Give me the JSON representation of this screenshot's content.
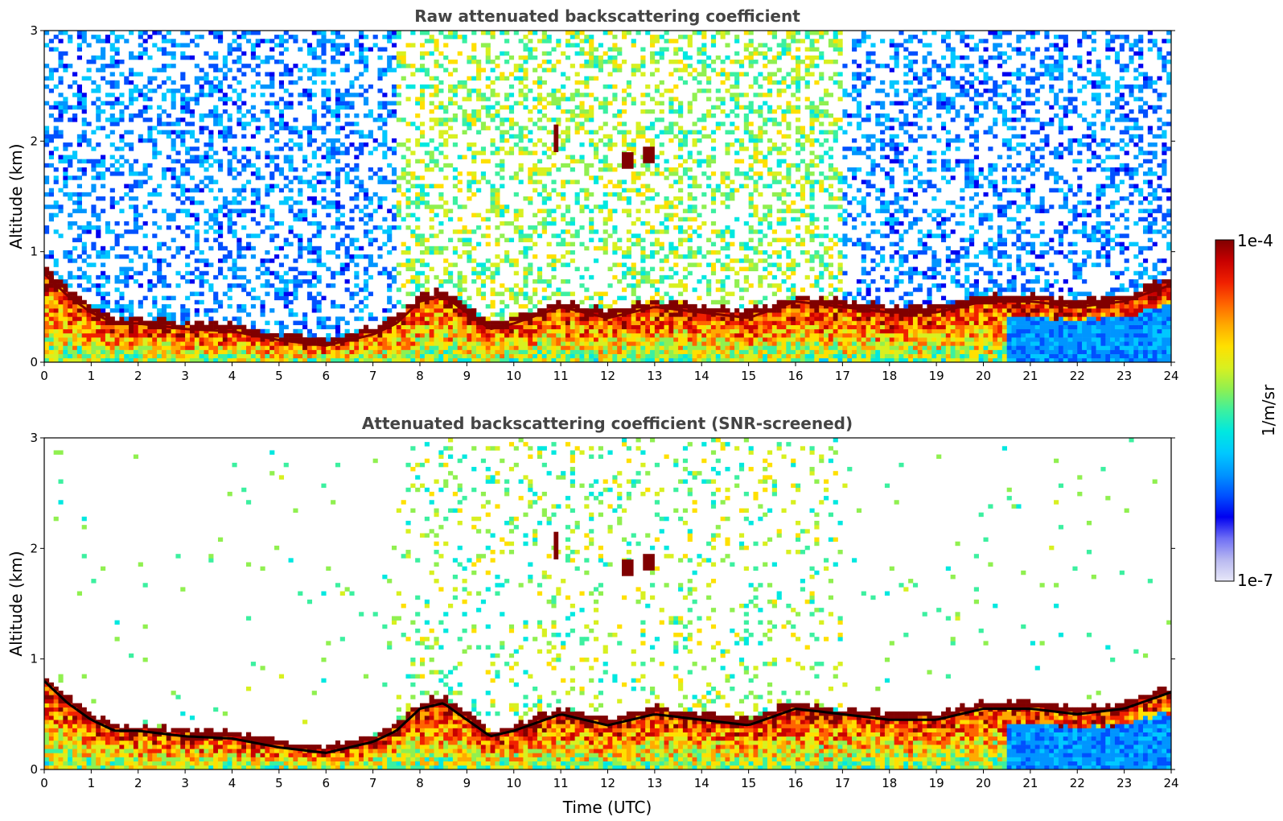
{
  "figure": {
    "colorbar": {
      "max_label": "1e-4",
      "min_label": "1e-7",
      "unit_label": "1/m/sr",
      "colormap": [
        "#e8e8f8",
        "#b8b8f0",
        "#6f6ff5",
        "#0000f0",
        "#0050ff",
        "#0095ff",
        "#00c8ff",
        "#00e8e0",
        "#3cf0a0",
        "#90f050",
        "#d8f020",
        "#ffe000",
        "#ffaa00",
        "#ff6400",
        "#f02000",
        "#c80000",
        "#800000"
      ]
    },
    "xlabel": "Time (UTC)"
  },
  "chart_data": [
    {
      "type": "heatmap",
      "title": "Raw attenuated backscattering coefficient",
      "xlabel": "",
      "ylabel": "Altitude (km)",
      "xlim": [
        0,
        24
      ],
      "ylim": [
        0,
        3
      ],
      "x_ticks": [
        "0",
        "1",
        "2",
        "3",
        "4",
        "5",
        "6",
        "7",
        "8",
        "9",
        "10",
        "11",
        "12",
        "13",
        "14",
        "15",
        "16",
        "17",
        "18",
        "19",
        "20",
        "21",
        "22",
        "23",
        "24"
      ],
      "y_ticks": [
        "0",
        "1",
        "2",
        "3"
      ],
      "value_scale": "log",
      "value_range": [
        1e-07,
        0.0001
      ],
      "value_unit": "1/m/sr",
      "boundary_layer_top_km": {
        "time_utc": [
          0,
          0.5,
          1,
          1.5,
          2,
          3,
          4,
          5,
          6,
          7,
          7.5,
          8,
          8.5,
          9,
          9.5,
          10,
          11,
          12,
          13,
          14,
          15,
          16,
          17,
          18,
          19,
          20,
          21,
          22,
          23,
          24
        ],
        "altitude_km": [
          0.8,
          0.6,
          0.45,
          0.35,
          0.35,
          0.3,
          0.28,
          0.2,
          0.15,
          0.25,
          0.35,
          0.55,
          0.6,
          0.45,
          0.3,
          0.35,
          0.5,
          0.4,
          0.5,
          0.45,
          0.4,
          0.55,
          0.5,
          0.45,
          0.45,
          0.55,
          0.55,
          0.5,
          0.55,
          0.7
        ]
      },
      "elevated_layers": [
        {
          "time_utc": [
            12.3,
            12.55
          ],
          "altitude_km": [
            1.75,
            1.9
          ]
        },
        {
          "time_utc": [
            12.75,
            13.0
          ],
          "altitude_km": [
            1.8,
            1.95
          ]
        },
        {
          "time_utc": [
            10.85,
            10.95
          ],
          "altitude_km": [
            1.9,
            2.15
          ]
        }
      ],
      "noise_level": "high"
    },
    {
      "type": "heatmap",
      "title": "Attenuated backscattering coefficient (SNR-screened)",
      "xlabel": "Time (UTC)",
      "ylabel": "Altitude (km)",
      "xlim": [
        0,
        24
      ],
      "ylim": [
        0,
        3
      ],
      "x_ticks": [
        "0",
        "1",
        "2",
        "3",
        "4",
        "5",
        "6",
        "7",
        "8",
        "9",
        "10",
        "11",
        "12",
        "13",
        "14",
        "15",
        "16",
        "17",
        "18",
        "19",
        "20",
        "21",
        "22",
        "23",
        "24"
      ],
      "y_ticks": [
        "0",
        "1",
        "2",
        "3"
      ],
      "value_scale": "log",
      "value_range": [
        1e-07,
        0.0001
      ],
      "value_unit": "1/m/sr",
      "boundary_layer_top_km": {
        "time_utc": [
          0,
          0.5,
          1,
          1.5,
          2,
          3,
          4,
          5,
          6,
          7,
          7.5,
          8,
          8.5,
          9,
          9.5,
          10,
          11,
          12,
          13,
          14,
          15,
          16,
          17,
          18,
          19,
          20,
          21,
          22,
          23,
          24
        ],
        "altitude_km": [
          0.8,
          0.6,
          0.45,
          0.35,
          0.35,
          0.3,
          0.28,
          0.2,
          0.15,
          0.25,
          0.35,
          0.55,
          0.6,
          0.45,
          0.3,
          0.35,
          0.5,
          0.4,
          0.5,
          0.45,
          0.4,
          0.55,
          0.5,
          0.45,
          0.45,
          0.55,
          0.55,
          0.5,
          0.55,
          0.7
        ]
      },
      "elevated_layers": [
        {
          "time_utc": [
            12.3,
            12.55
          ],
          "altitude_km": [
            1.75,
            1.9
          ]
        },
        {
          "time_utc": [
            12.75,
            13.0
          ],
          "altitude_km": [
            1.8,
            1.95
          ]
        },
        {
          "time_utc": [
            10.85,
            10.95
          ],
          "altitude_km": [
            1.9,
            2.15
          ]
        }
      ],
      "noise_level": "low"
    }
  ]
}
